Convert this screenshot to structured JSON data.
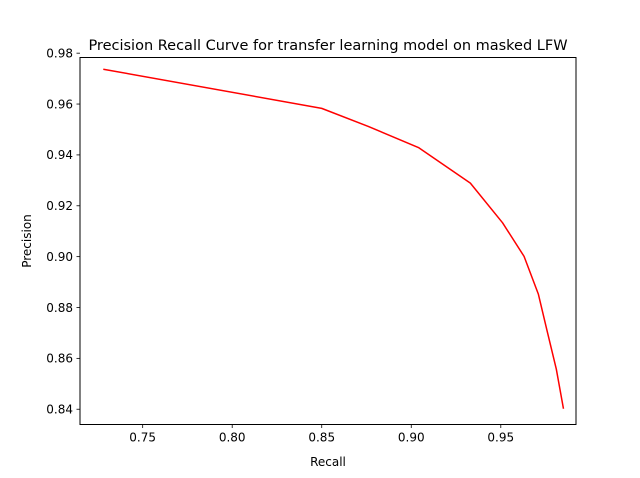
{
  "chart_data": {
    "type": "line",
    "title": "Precision Recall Curve for transfer learning model on masked LFW",
    "xlabel": "Recall",
    "ylabel": "Precision",
    "xlim": [
      0.715,
      0.992
    ],
    "ylim": [
      0.834,
      0.9783
    ],
    "xticks": [
      0.75,
      0.8,
      0.85,
      0.9,
      0.95
    ],
    "xtick_labels": [
      "0.75",
      "0.80",
      "0.85",
      "0.90",
      "0.95"
    ],
    "yticks": [
      0.84,
      0.86,
      0.88,
      0.9,
      0.92,
      0.94,
      0.96,
      0.98
    ],
    "ytick_labels": [
      "0.84",
      "0.86",
      "0.88",
      "0.90",
      "0.92",
      "0.94",
      "0.96",
      "0.98"
    ],
    "grid": false,
    "series": [
      {
        "color": "#ff0000",
        "x": [
          0.728,
          0.85,
          0.876,
          0.904,
          0.933,
          0.951,
          0.963,
          0.971,
          0.976,
          0.981,
          0.985
        ],
        "y": [
          0.9737,
          0.9583,
          0.9512,
          0.9429,
          0.9289,
          0.9133,
          0.9001,
          0.8852,
          0.8704,
          0.8558,
          0.8402
        ]
      }
    ]
  }
}
